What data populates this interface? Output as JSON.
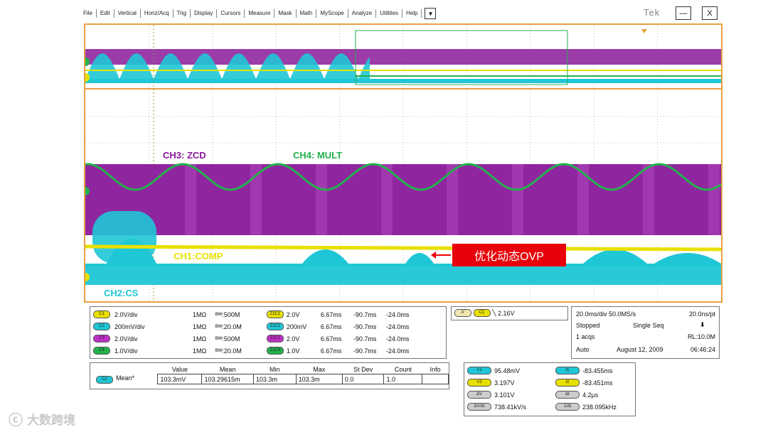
{
  "menu": [
    "File",
    "Edit",
    "Vertical",
    "Horiz/Acq",
    "Trig",
    "Display",
    "Cursors",
    "Measure",
    "Mask",
    "Math",
    "MyScope",
    "Analyze",
    "Utilities",
    "Help"
  ],
  "dropdown_glyph": "▼",
  "brand": "Tek",
  "window": {
    "minimize": "—",
    "close": "X"
  },
  "traces": {
    "ch3": {
      "label": "CH3: ZCD",
      "color": "#8a1a9a"
    },
    "ch4": {
      "label": "CH4: MULT",
      "color": "#22b24c"
    },
    "ch1": {
      "label": "CH1:COMP",
      "color": "#e8e000"
    },
    "ch2": {
      "label": "CH2:CS",
      "color": "#1fc6d6"
    }
  },
  "annotation": "优化动态OVP",
  "channels": [
    {
      "id": "C1",
      "color": "#e8e000",
      "scale": "2.0V/div",
      "imp": "1MΩ",
      "bw": "500M",
      "zoom": "Z1C1",
      "zscale": "2.0V",
      "zt": "6.67ms",
      "zpos": "-90.7ms",
      "zend": "-24.0ms"
    },
    {
      "id": "C2",
      "color": "#1fc6d6",
      "scale": "200mV/div",
      "imp": "1MΩ",
      "bw": "20.0M",
      "zoom": "Z1C2",
      "zscale": "200mV",
      "zt": "6.67ms",
      "zpos": "-90.7ms",
      "zend": "-24.0ms"
    },
    {
      "id": "C3",
      "color": "#c030c8",
      "scale": "2.0V/div",
      "imp": "1MΩ",
      "bw": "500M",
      "zoom": "Z1C3",
      "zscale": "2.0V",
      "zt": "6.67ms",
      "zpos": "-90.7ms",
      "zend": "-24.0ms"
    },
    {
      "id": "C4",
      "color": "#22b24c",
      "scale": "1.0V/div",
      "imp": "1MΩ",
      "bw": "20.0M",
      "zoom": "Z1C4",
      "zscale": "1.0V",
      "zt": "6.67ms",
      "zpos": "-90.7ms",
      "zend": "-24.0ms"
    }
  ],
  "trigger": {
    "src": "A'",
    "ch": "C1",
    "level": "2.16V"
  },
  "acq": {
    "timebase": "20.0ms/div",
    "rate": "50.0MS/s",
    "res": "20.0ns/pt",
    "state": "Stopped",
    "mode": "Single Seq",
    "acqs": "1 acqs",
    "rl": "RL:10.0M",
    "trig_mode": "Auto",
    "date": "August 12, 2009",
    "time": "06:46:24"
  },
  "measure": {
    "headers": [
      "Value",
      "Mean",
      "Min",
      "Max",
      "St Dev",
      "Count",
      "Info"
    ],
    "source": "C2",
    "name": "Mean*",
    "values": [
      "103.3mV",
      "103.29615m",
      "103.3m",
      "103.3m",
      "0.0",
      "1.0",
      ""
    ]
  },
  "cursors": [
    {
      "k": "V1",
      "v": "95.48mV",
      "k2": "t1",
      "v2": "-83.455ms"
    },
    {
      "k": "V2",
      "v": "3.197V",
      "k2": "t2",
      "v2": "-83.451ms"
    },
    {
      "k": "ΔV",
      "v": "3.101V",
      "k2": "Δt",
      "v2": "4.2µs"
    },
    {
      "k": "ΔV/Δt",
      "v": "738.41kV/s",
      "k2": "1/Δt",
      "v2": "238.095kHz"
    }
  ],
  "watermark": "大数跨境"
}
